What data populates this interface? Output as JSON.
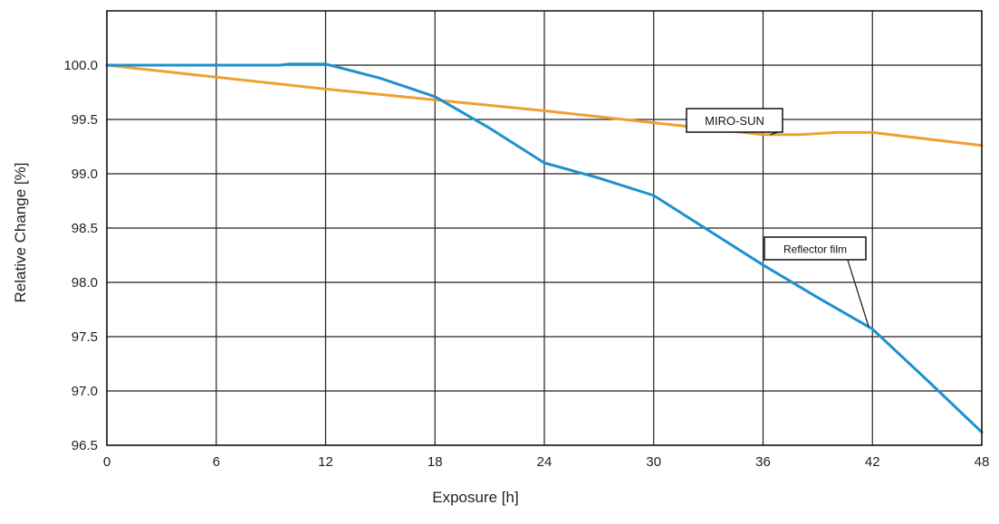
{
  "chart_data": {
    "type": "line",
    "title": "",
    "xlabel": "Exposure  [h]",
    "ylabel": "Relative Change  [%]",
    "xlim": [
      0,
      48
    ],
    "ylim": [
      96.5,
      100.5
    ],
    "x_ticks": [
      0,
      6,
      12,
      18,
      24,
      30,
      36,
      42,
      48
    ],
    "y_ticks": [
      96.5,
      97.0,
      97.5,
      98.0,
      98.5,
      99.0,
      99.5,
      100.0
    ],
    "y_tick_labels": [
      "96.5",
      "97.0",
      "97.5",
      "98.0",
      "98.5",
      "99.0",
      "99.5",
      "100.0"
    ],
    "grid": true,
    "legend": "none",
    "series": [
      {
        "name": "MIRO-SUN",
        "color": "#F0A030",
        "x": [
          0,
          6,
          12,
          18,
          24,
          30,
          36,
          38,
          40,
          42,
          48
        ],
        "y": [
          100.0,
          99.89,
          99.78,
          99.68,
          99.58,
          99.47,
          99.36,
          99.36,
          99.38,
          99.38,
          99.26
        ]
      },
      {
        "name": "Reflector film",
        "color": "#1E90D0",
        "x": [
          0,
          6,
          9.5,
          10,
          12,
          15,
          18,
          21,
          24,
          27,
          30,
          33,
          36,
          39,
          42,
          45,
          48
        ],
        "y": [
          100.0,
          100.0,
          100.0,
          100.01,
          100.01,
          99.88,
          99.71,
          99.42,
          99.1,
          98.96,
          98.8,
          98.48,
          98.16,
          97.86,
          97.57,
          97.1,
          96.62
        ]
      }
    ],
    "annotations": [
      {
        "text": "MIRO-SUN",
        "series": "MIRO-SUN",
        "points_to_x": 36.4
      },
      {
        "text": "Reflector film",
        "series": "Reflector film",
        "points_to_x": 41.8
      }
    ]
  }
}
